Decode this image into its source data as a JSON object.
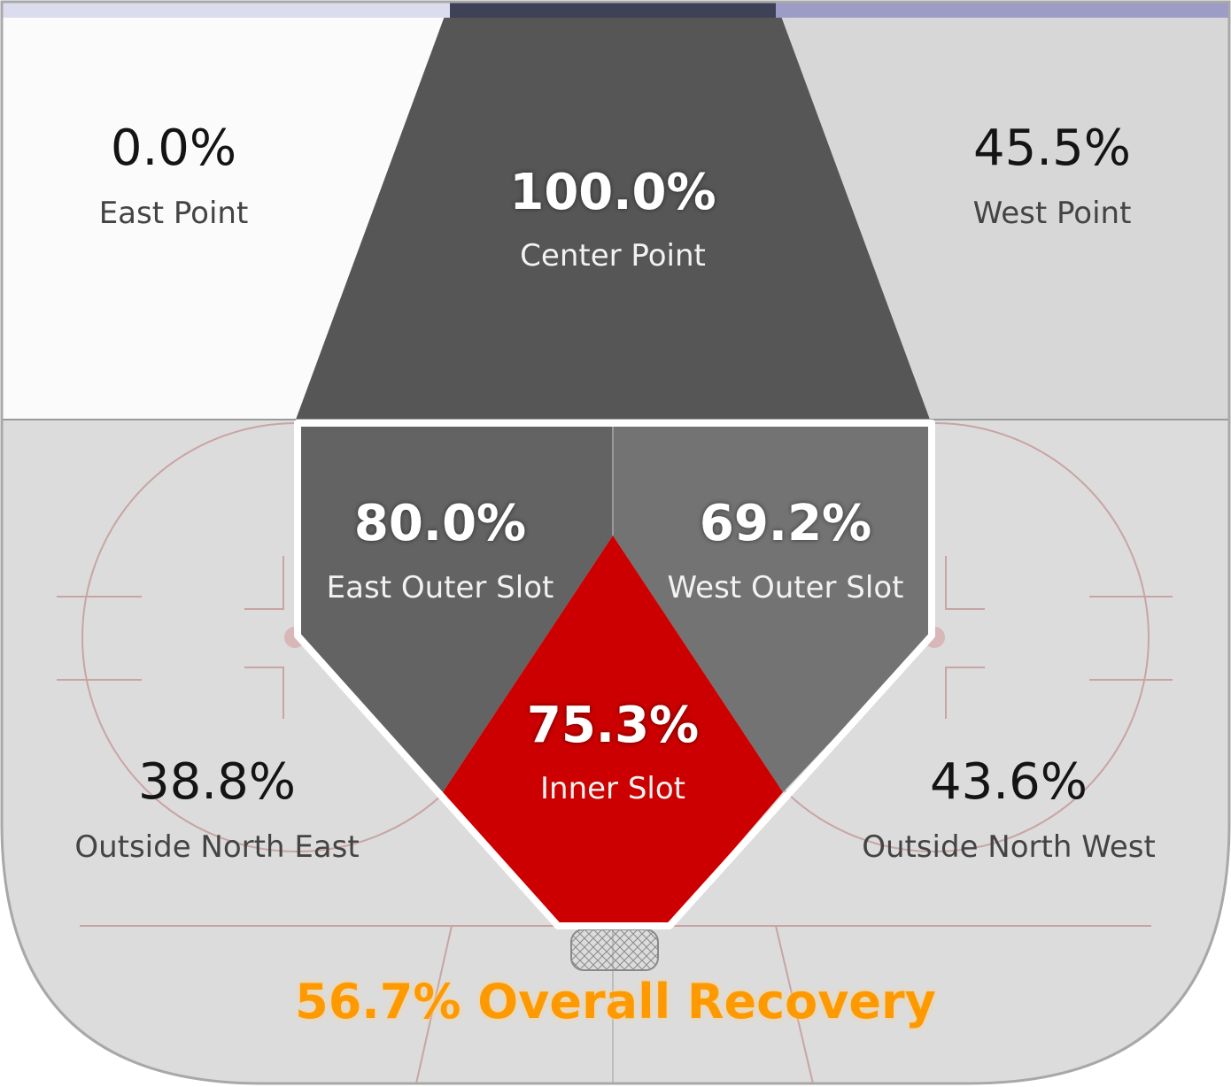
{
  "colors": {
    "light_zone": "#dcdcdc",
    "white_zone": "#fbfbfb",
    "dark_zone": "#565656",
    "slot_zone": "#676767",
    "inner_slot": "#cc0000",
    "overall": "#ff9900",
    "top_bar": "#9c9cc6"
  },
  "zones": {
    "east_point": {
      "value": "0.0%",
      "label": "East Point"
    },
    "center_point": {
      "value": "100.0%",
      "label": "Center Point"
    },
    "west_point": {
      "value": "45.5%",
      "label": "West Point"
    },
    "east_outer_slot": {
      "value": "80.0%",
      "label": "East Outer Slot"
    },
    "west_outer_slot": {
      "value": "69.2%",
      "label": "West Outer Slot"
    },
    "inner_slot": {
      "value": "75.3%",
      "label": "Inner Slot"
    },
    "outside_north_east": {
      "value": "38.8%",
      "label": "Outside North East"
    },
    "outside_north_west": {
      "value": "43.6%",
      "label": "Outside North West"
    }
  },
  "overall": {
    "text": "56.7% Overall Recovery"
  }
}
